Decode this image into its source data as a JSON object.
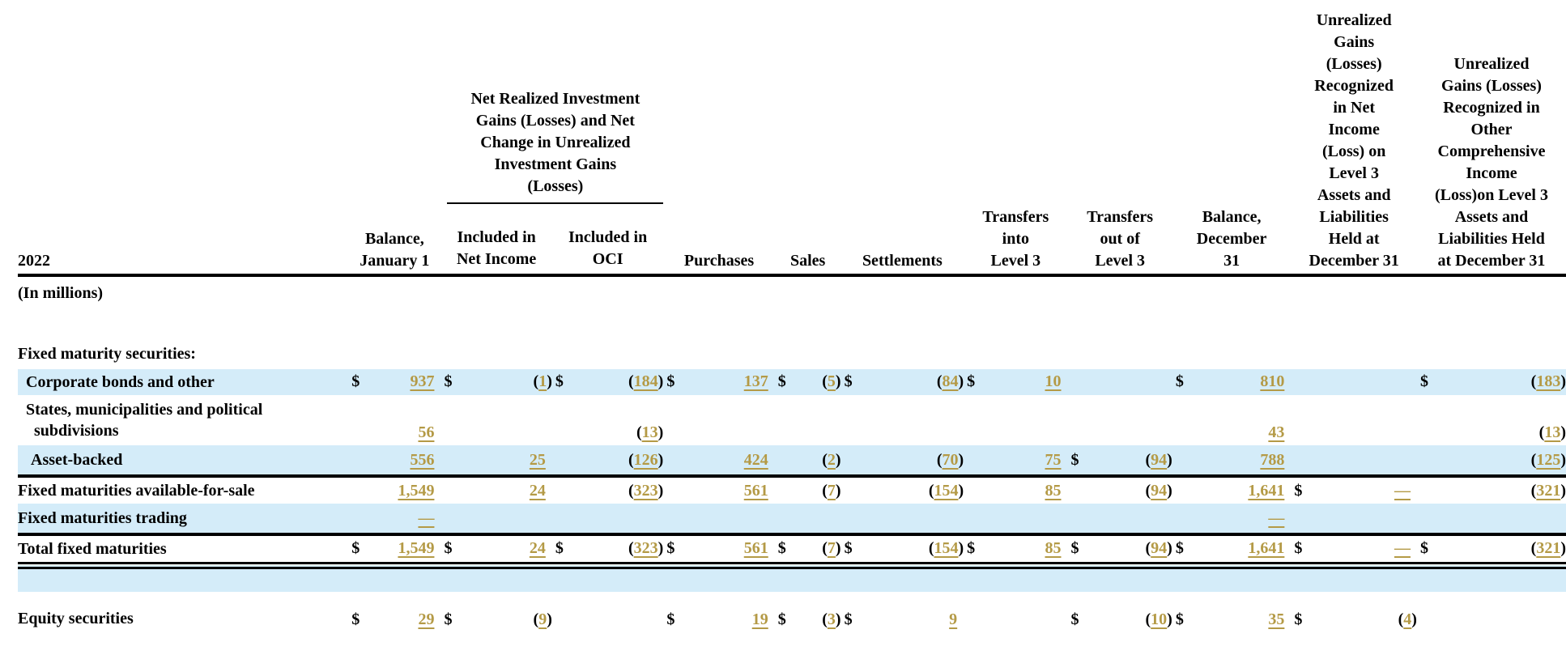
{
  "header": {
    "year": "2022",
    "group_heading": "Net Realized Investment\nGains (Losses) and Net\nChange in Unrealized\nInvestment Gains\n(Losses)",
    "columns": [
      "Balance,\nJanuary 1",
      "Included in\nNet Income",
      "Included in\nOCI",
      "Purchases",
      "Sales",
      "Settlements",
      "Transfers\ninto\nLevel 3",
      "Transfers\nout of\nLevel 3",
      "Balance,\nDecember\n31",
      "Unrealized\nGains\n(Losses)\nRecognized\nin Net\nIncome\n(Loss) on\nLevel 3\nAssets and\nLiabilities\nHeld at\nDecember 31",
      "Unrealized\nGains (Losses)\nRecognized in\nOther\nComprehensive\nIncome\n(Loss)on Level 3\nAssets and\nLiabilities Held\nat December 31"
    ]
  },
  "units_label": "(In millions)",
  "section_label": "Fixed maturity securities:",
  "rows": [
    {
      "label": "Corporate bonds and other",
      "indent": 1,
      "style": "blue",
      "cells": [
        [
          "$",
          "937"
        ],
        [
          "$",
          "(1)"
        ],
        [
          "$",
          "(184)"
        ],
        [
          "$",
          "137"
        ],
        [
          "$",
          "(5)"
        ],
        [
          "$",
          "(84)"
        ],
        [
          "$",
          "10"
        ],
        [
          "",
          ""
        ],
        [
          "$",
          "810"
        ],
        [
          "",
          ""
        ],
        [
          "$",
          "(183)"
        ]
      ]
    },
    {
      "label": "States, municipalities and political\nsubdivisions",
      "indent": 2,
      "style": "",
      "cells": [
        [
          "",
          "56"
        ],
        [
          "",
          ""
        ],
        [
          "",
          "(13)"
        ],
        [
          "",
          ""
        ],
        [
          "",
          ""
        ],
        [
          "",
          ""
        ],
        [
          "",
          ""
        ],
        [
          "",
          ""
        ],
        [
          "",
          "43"
        ],
        [
          "",
          ""
        ],
        [
          "",
          "(13)"
        ]
      ]
    },
    {
      "label": "Asset-backed",
      "indent": 3,
      "style": "blue thick",
      "cells": [
        [
          "",
          "556"
        ],
        [
          "",
          "25"
        ],
        [
          "",
          "(126)"
        ],
        [
          "",
          "424"
        ],
        [
          "",
          "(2)"
        ],
        [
          "",
          "(70)"
        ],
        [
          "",
          "75"
        ],
        [
          "$",
          "(94)"
        ],
        [
          "",
          "788"
        ],
        [
          "",
          ""
        ],
        [
          "",
          "(125)"
        ]
      ]
    },
    {
      "label": "Fixed maturities available-for-sale",
      "indent": 0,
      "style": "",
      "cells": [
        [
          "",
          "1,549"
        ],
        [
          "",
          "24"
        ],
        [
          "",
          "(323)"
        ],
        [
          "",
          "561"
        ],
        [
          "",
          "(7)"
        ],
        [
          "",
          "(154)"
        ],
        [
          "",
          "85"
        ],
        [
          "",
          "(94)"
        ],
        [
          "",
          "1,641"
        ],
        [
          "$",
          "—"
        ],
        [
          "",
          "(321)"
        ]
      ]
    },
    {
      "label": "Fixed maturities trading",
      "indent": 0,
      "style": "blue thick",
      "cells": [
        [
          "",
          "—"
        ],
        [
          "",
          ""
        ],
        [
          "",
          ""
        ],
        [
          "",
          ""
        ],
        [
          "",
          ""
        ],
        [
          "",
          ""
        ],
        [
          "",
          ""
        ],
        [
          "",
          ""
        ],
        [
          "",
          "—"
        ],
        [
          "",
          ""
        ],
        [
          "",
          ""
        ]
      ]
    },
    {
      "label": "Total fixed maturities",
      "indent": 0,
      "style": "dbl",
      "cells": [
        [
          "$",
          "1,549"
        ],
        [
          "$",
          "24"
        ],
        [
          "$",
          "(323)"
        ],
        [
          "$",
          "561"
        ],
        [
          "$",
          "(7)"
        ],
        [
          "$",
          "(154)"
        ],
        [
          "$",
          "85"
        ],
        [
          "$",
          "(94)"
        ],
        [
          "$",
          "1,641"
        ],
        [
          "$",
          "—"
        ],
        [
          "$",
          "(321)"
        ]
      ]
    },
    {
      "label": "",
      "indent": 0,
      "style": "blue spacer",
      "cells": [
        [
          "",
          ""
        ],
        [
          "",
          ""
        ],
        [
          "",
          ""
        ],
        [
          "",
          ""
        ],
        [
          "",
          ""
        ],
        [
          "",
          ""
        ],
        [
          "",
          ""
        ],
        [
          "",
          ""
        ],
        [
          "",
          ""
        ],
        [
          "",
          ""
        ],
        [
          "",
          ""
        ]
      ]
    },
    {
      "label": "Equity securities",
      "indent": 0,
      "style": "",
      "cells": [
        [
          "$",
          "29"
        ],
        [
          "$",
          "(9)"
        ],
        [
          "",
          ""
        ],
        [
          "$",
          "19"
        ],
        [
          "$",
          "(3)"
        ],
        [
          "$",
          "9"
        ],
        [
          "",
          ""
        ],
        [
          "$",
          "(10)"
        ],
        [
          "$",
          "35"
        ],
        [
          "$",
          "(4)"
        ],
        [
          "",
          ""
        ]
      ]
    }
  ],
  "colors": {
    "link_gold": "#b49a46",
    "row_blue": "#d4ecf9"
  }
}
